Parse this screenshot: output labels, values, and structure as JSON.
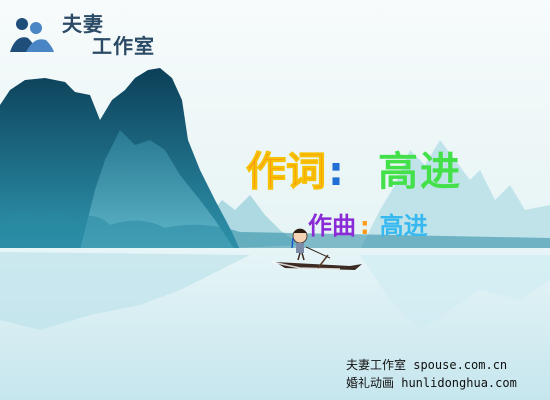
{
  "logo": {
    "line1": "夫妻",
    "line2": "工作室"
  },
  "credits": {
    "lyricist_label": "作词",
    "lyricist_colon": ":",
    "lyricist_name": "高进",
    "composer_label": "作曲",
    "composer_colon": ":",
    "composer_name": "高进"
  },
  "footer": {
    "line1": "夫妻工作室 spouse.com.cn",
    "line2": "婚礼动画 hunlidonghua.com"
  },
  "colors": {
    "sky_top": "#f2f7f7",
    "sky_bottom": "#d7ecef",
    "mountain_dark": "#0f4b63",
    "mountain_mid": "#2e8aa4",
    "water": "#cdeaf0"
  }
}
